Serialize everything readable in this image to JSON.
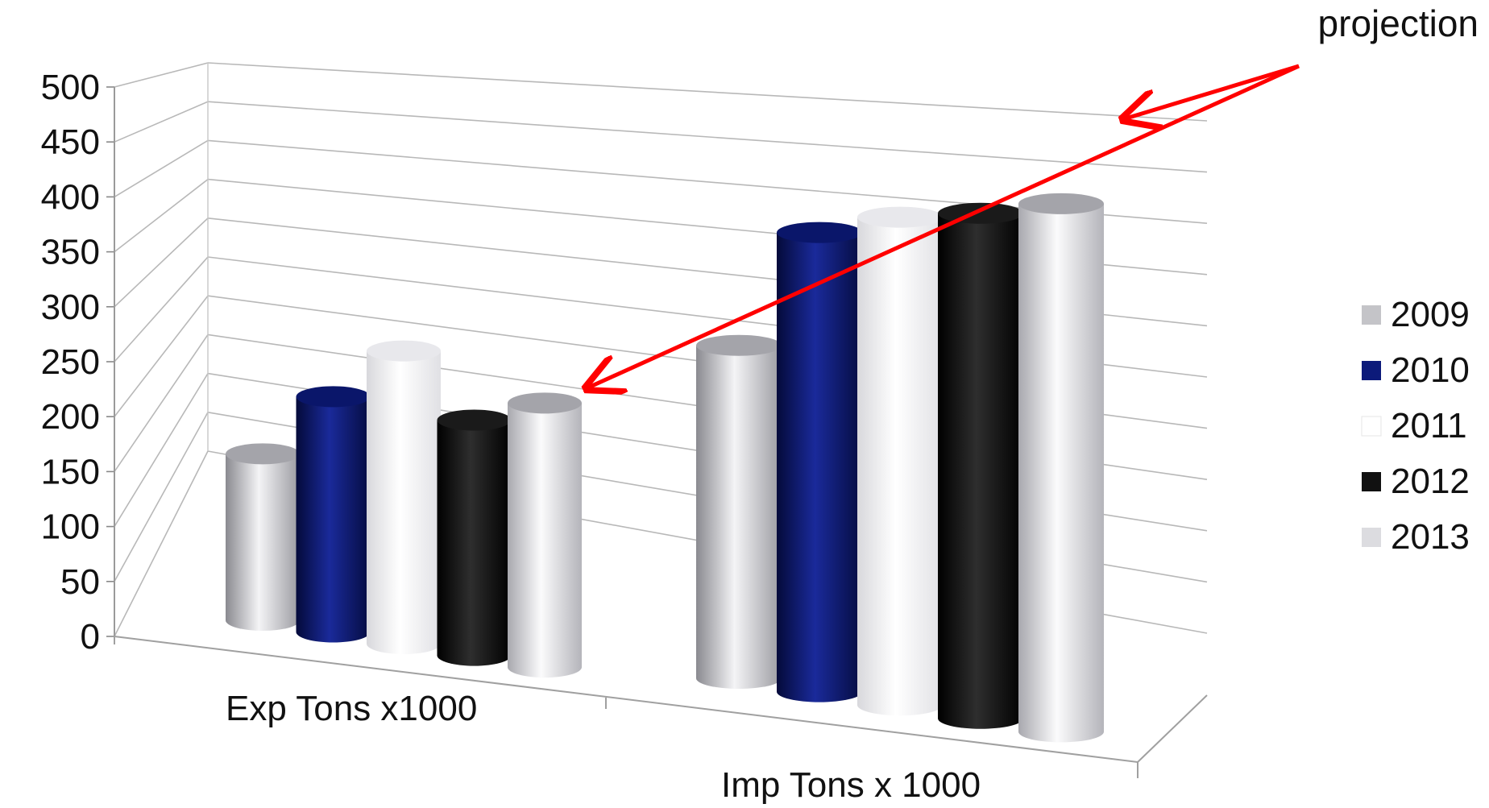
{
  "chart_data": {
    "type": "bar",
    "title": "",
    "xlabel": "",
    "ylabel": "",
    "ylim": [
      0,
      500
    ],
    "yticks": [
      0,
      50,
      100,
      150,
      200,
      250,
      300,
      350,
      400,
      450,
      500
    ],
    "grid": true,
    "legend_position": "right",
    "categories": [
      "Exp Tons x1000",
      "Imp Tons x 1000"
    ],
    "series": [
      {
        "name": "2009",
        "values": [
          145,
          290
        ],
        "color": "#c4c4c8"
      },
      {
        "name": "2010",
        "values": [
          205,
          400
        ],
        "color": "#0c1a7a"
      },
      {
        "name": "2011",
        "values": [
          255,
          425
        ],
        "color": "#ffffff"
      },
      {
        "name": "2012",
        "values": [
          205,
          440
        ],
        "color": "#111111"
      },
      {
        "name": "2013",
        "values": [
          230,
          460
        ],
        "color": "#dcdce0"
      }
    ],
    "annotation": {
      "text": "projection",
      "arrow_color": "#ff0000",
      "points_to": [
        {
          "category": "Exp Tons x1000",
          "series": "2013"
        },
        {
          "category": "Imp Tons x 1000",
          "series": "2013"
        }
      ]
    }
  }
}
